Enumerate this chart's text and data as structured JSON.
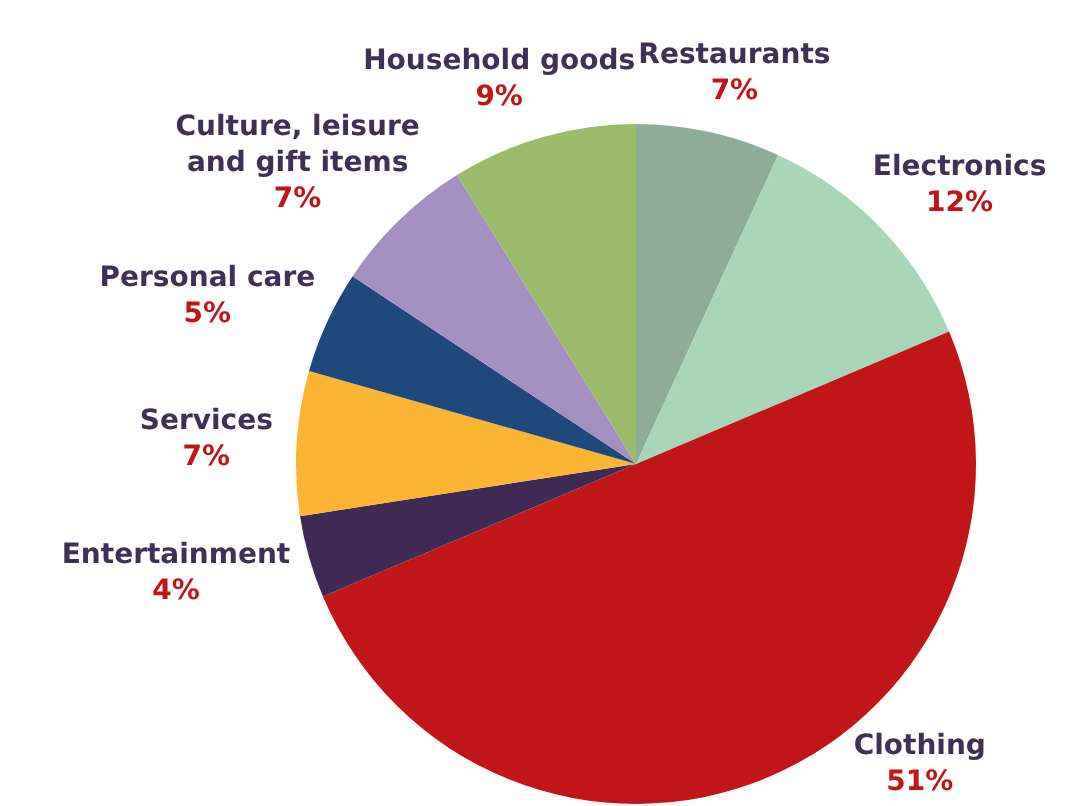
{
  "chart_data": {
    "type": "pie",
    "categories": [
      "Restaurants",
      "Electronics",
      "Clothing",
      "Entertainment",
      "Services",
      "Personal care",
      "Culture, leisure and gift items",
      "Household goods"
    ],
    "values": [
      7,
      12,
      51,
      4,
      7,
      5,
      7,
      9
    ],
    "colors": [
      "#8fac98",
      "#a9d5b8",
      "#c0161a",
      "#3f2a56",
      "#fbb532",
      "#1f497d",
      "#a490c0",
      "#9bbb6a"
    ],
    "value_labels": [
      "7%",
      "12%",
      "51%",
      "4%",
      "7%",
      "5%",
      "7%",
      "9%"
    ],
    "legend": false
  }
}
